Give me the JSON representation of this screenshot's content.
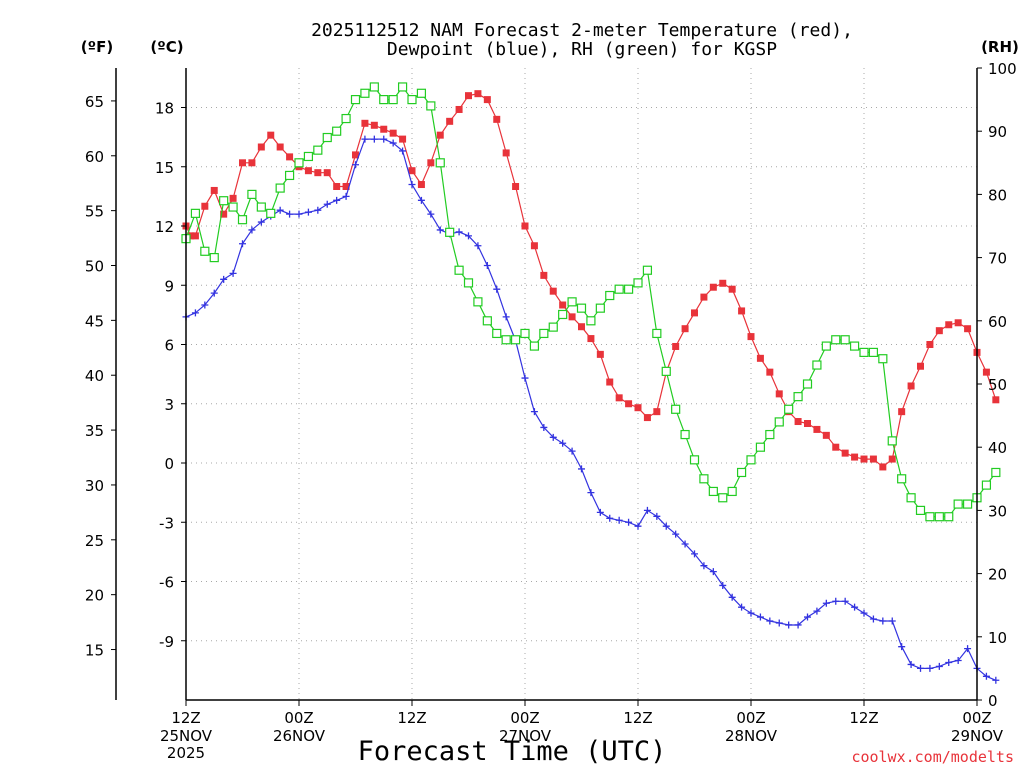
{
  "chart_data": {
    "type": "line",
    "title_line1": "2025112512 NAM Forecast 2-meter Temperature (red),",
    "title_line2": "Dewpoint (blue), RH (green) for KGSP",
    "xlabel": "Forecast Time (UTC)",
    "watermark": "coolwx.com/modelts",
    "unit_labels": {
      "fahrenheit": "(ºF)",
      "celsius": "(ºC)",
      "rh": "(RH)"
    },
    "x_range_hours": [
      0,
      84
    ],
    "x_ticks": [
      {
        "hour": 0,
        "line1": "12Z",
        "line2": "25NOV",
        "line3": "2025"
      },
      {
        "hour": 12,
        "line1": "00Z",
        "line2": "26NOV",
        "line3": ""
      },
      {
        "hour": 24,
        "line1": "12Z",
        "line2": "",
        "line3": ""
      },
      {
        "hour": 36,
        "line1": "00Z",
        "line2": "27NOV",
        "line3": ""
      },
      {
        "hour": 48,
        "line1": "12Z",
        "line2": "",
        "line3": ""
      },
      {
        "hour": 60,
        "line1": "00Z",
        "line2": "28NOV",
        "line3": ""
      },
      {
        "hour": 72,
        "line1": "12Z",
        "line2": "",
        "line3": ""
      },
      {
        "hour": 84,
        "line1": "00Z",
        "line2": "29NOV",
        "line3": ""
      }
    ],
    "celsius_axis": {
      "range": [
        -12,
        20
      ],
      "ticks": [
        "18",
        "15",
        "12",
        "9",
        "6",
        "3",
        "0",
        "-3",
        "-6",
        "-9"
      ]
    },
    "fahrenheit_axis": {
      "range": [
        10.4,
        68
      ],
      "ticks": [
        "65",
        "60",
        "55",
        "50",
        "45",
        "40",
        "35",
        "30",
        "25",
        "20",
        "15"
      ]
    },
    "rh_axis": {
      "range": [
        0,
        100
      ],
      "ticks": [
        "100",
        "90",
        "80",
        "70",
        "60",
        "50",
        "40",
        "30",
        "20",
        "10",
        "0"
      ]
    },
    "series": [
      {
        "name": "Temperature",
        "unit": "C",
        "color": "#e8333a",
        "marker": "filled-square",
        "points": [
          [
            0,
            12
          ],
          [
            0.5,
            11.5
          ],
          [
            1,
            11.5
          ],
          [
            2,
            13
          ],
          [
            3,
            13.8
          ],
          [
            4,
            12.6
          ],
          [
            5,
            13.4
          ],
          [
            6,
            15.2
          ],
          [
            7,
            15.2
          ],
          [
            8,
            16
          ],
          [
            9,
            16.6
          ],
          [
            10,
            16
          ],
          [
            11,
            15.5
          ],
          [
            12,
            15
          ],
          [
            13,
            14.8
          ],
          [
            14,
            14.7
          ],
          [
            15,
            14.7
          ],
          [
            16,
            14
          ],
          [
            17,
            14
          ],
          [
            18,
            15.6
          ],
          [
            19,
            17.2
          ],
          [
            20,
            17.1
          ],
          [
            21,
            16.9
          ],
          [
            22,
            16.7
          ],
          [
            23,
            16.4
          ],
          [
            24,
            14.8
          ],
          [
            25,
            14.1
          ],
          [
            26,
            15.2
          ],
          [
            27,
            16.6
          ],
          [
            28,
            17.3
          ],
          [
            29,
            17.9
          ],
          [
            30,
            18.6
          ],
          [
            31,
            18.7
          ],
          [
            32,
            18.4
          ],
          [
            33,
            17.4
          ],
          [
            34,
            15.7
          ],
          [
            35,
            14
          ],
          [
            36,
            12
          ],
          [
            37,
            11
          ],
          [
            38,
            9.5
          ],
          [
            39,
            8.7
          ],
          [
            40,
            8
          ],
          [
            41,
            7.4
          ],
          [
            42,
            6.9
          ],
          [
            43,
            6.3
          ],
          [
            44,
            5.5
          ],
          [
            45,
            4.1
          ],
          [
            46,
            3.3
          ],
          [
            47,
            3
          ],
          [
            48,
            2.8
          ],
          [
            49,
            2.3
          ],
          [
            50,
            2.6
          ],
          [
            51,
            4.6
          ],
          [
            52,
            5.9
          ],
          [
            53,
            6.8
          ],
          [
            54,
            7.6
          ],
          [
            55,
            8.4
          ],
          [
            56,
            8.9
          ],
          [
            57,
            9.1
          ],
          [
            58,
            8.8
          ],
          [
            59,
            7.7
          ],
          [
            60,
            6.4
          ],
          [
            61,
            5.3
          ],
          [
            62,
            4.6
          ],
          [
            63,
            3.5
          ],
          [
            64,
            2.6
          ],
          [
            65,
            2.1
          ],
          [
            66,
            2
          ],
          [
            67,
            1.7
          ],
          [
            68,
            1.4
          ],
          [
            69,
            0.8
          ],
          [
            70,
            0.5
          ],
          [
            71,
            0.3
          ],
          [
            72,
            0.2
          ],
          [
            73,
            0.2
          ],
          [
            74,
            -0.2
          ],
          [
            75,
            0.2
          ],
          [
            76,
            2.6
          ],
          [
            77,
            3.9
          ],
          [
            78,
            4.9
          ],
          [
            79,
            6
          ],
          [
            80,
            6.7
          ],
          [
            81,
            7
          ],
          [
            82,
            7.1
          ],
          [
            83,
            6.8
          ],
          [
            84,
            5.6
          ],
          [
            85,
            4.6
          ],
          [
            86,
            3.2
          ]
        ]
      },
      {
        "name": "Dewpoint",
        "unit": "C",
        "color": "#3333e0",
        "marker": "plus",
        "points": [
          [
            0,
            7.4
          ],
          [
            1,
            7.6
          ],
          [
            2,
            8
          ],
          [
            3,
            8.6
          ],
          [
            4,
            9.3
          ],
          [
            5,
            9.6
          ],
          [
            6,
            11.1
          ],
          [
            7,
            11.8
          ],
          [
            8,
            12.2
          ],
          [
            9,
            12.5
          ],
          [
            10,
            12.8
          ],
          [
            11,
            12.6
          ],
          [
            12,
            12.6
          ],
          [
            13,
            12.7
          ],
          [
            14,
            12.8
          ],
          [
            15,
            13.1
          ],
          [
            16,
            13.3
          ],
          [
            17,
            13.5
          ],
          [
            18,
            15.1
          ],
          [
            19,
            16.4
          ],
          [
            20,
            16.4
          ],
          [
            21,
            16.4
          ],
          [
            22,
            16.2
          ],
          [
            23,
            15.8
          ],
          [
            24,
            14.1
          ],
          [
            25,
            13.3
          ],
          [
            26,
            12.6
          ],
          [
            27,
            11.8
          ],
          [
            28,
            11.6
          ],
          [
            29,
            11.7
          ],
          [
            30,
            11.5
          ],
          [
            31,
            11
          ],
          [
            32,
            10
          ],
          [
            33,
            8.8
          ],
          [
            34,
            7.4
          ],
          [
            35,
            6.2
          ],
          [
            36,
            4.3
          ],
          [
            37,
            2.6
          ],
          [
            38,
            1.8
          ],
          [
            39,
            1.3
          ],
          [
            40,
            1
          ],
          [
            41,
            0.6
          ],
          [
            42,
            -0.3
          ],
          [
            43,
            -1.5
          ],
          [
            44,
            -2.5
          ],
          [
            45,
            -2.8
          ],
          [
            46,
            -2.9
          ],
          [
            47,
            -3
          ],
          [
            48,
            -3.2
          ],
          [
            49,
            -2.4
          ],
          [
            50,
            -2.7
          ],
          [
            51,
            -3.2
          ],
          [
            52,
            -3.6
          ],
          [
            53,
            -4.1
          ],
          [
            54,
            -4.6
          ],
          [
            55,
            -5.2
          ],
          [
            56,
            -5.5
          ],
          [
            57,
            -6.2
          ],
          [
            58,
            -6.8
          ],
          [
            59,
            -7.3
          ],
          [
            60,
            -7.6
          ],
          [
            61,
            -7.8
          ],
          [
            62,
            -8
          ],
          [
            63,
            -8.1
          ],
          [
            64,
            -8.2
          ],
          [
            65,
            -8.2
          ],
          [
            66,
            -7.8
          ],
          [
            67,
            -7.5
          ],
          [
            68,
            -7.1
          ],
          [
            69,
            -7
          ],
          [
            70,
            -7
          ],
          [
            71,
            -7.3
          ],
          [
            72,
            -7.6
          ],
          [
            73,
            -7.9
          ],
          [
            74,
            -8
          ],
          [
            75,
            -8
          ],
          [
            76,
            -9.3
          ],
          [
            77,
            -10.2
          ],
          [
            78,
            -10.4
          ],
          [
            79,
            -10.4
          ],
          [
            80,
            -10.3
          ],
          [
            81,
            -10.1
          ],
          [
            82,
            -10
          ],
          [
            83,
            -9.4
          ],
          [
            84,
            -10.4
          ],
          [
            85,
            -10.8
          ],
          [
            86,
            -11
          ]
        ]
      },
      {
        "name": "RH",
        "unit": "%",
        "color": "#22cc22",
        "marker": "open-square",
        "points": [
          [
            0,
            73
          ],
          [
            1,
            77
          ],
          [
            2,
            71
          ],
          [
            3,
            70
          ],
          [
            4,
            79
          ],
          [
            5,
            78
          ],
          [
            6,
            76
          ],
          [
            7,
            80
          ],
          [
            8,
            78
          ],
          [
            9,
            77
          ],
          [
            10,
            81
          ],
          [
            11,
            83
          ],
          [
            12,
            85
          ],
          [
            13,
            86
          ],
          [
            14,
            87
          ],
          [
            15,
            89
          ],
          [
            16,
            90
          ],
          [
            17,
            92
          ],
          [
            18,
            95
          ],
          [
            19,
            96
          ],
          [
            20,
            97
          ],
          [
            21,
            95
          ],
          [
            22,
            95
          ],
          [
            23,
            97
          ],
          [
            24,
            95
          ],
          [
            25,
            96
          ],
          [
            26,
            94
          ],
          [
            27,
            85
          ],
          [
            28,
            74
          ],
          [
            29,
            68
          ],
          [
            30,
            66
          ],
          [
            31,
            63
          ],
          [
            32,
            60
          ],
          [
            33,
            58
          ],
          [
            34,
            57
          ],
          [
            35,
            57
          ],
          [
            36,
            58
          ],
          [
            37,
            56
          ],
          [
            38,
            58
          ],
          [
            39,
            59
          ],
          [
            40,
            61
          ],
          [
            41,
            63
          ],
          [
            42,
            62
          ],
          [
            43,
            60
          ],
          [
            44,
            62
          ],
          [
            45,
            64
          ],
          [
            46,
            65
          ],
          [
            47,
            65
          ],
          [
            48,
            66
          ],
          [
            49,
            68
          ],
          [
            50,
            58
          ],
          [
            51,
            52
          ],
          [
            52,
            46
          ],
          [
            53,
            42
          ],
          [
            54,
            38
          ],
          [
            55,
            35
          ],
          [
            56,
            33
          ],
          [
            57,
            32
          ],
          [
            58,
            33
          ],
          [
            59,
            36
          ],
          [
            60,
            38
          ],
          [
            61,
            40
          ],
          [
            62,
            42
          ],
          [
            63,
            44
          ],
          [
            64,
            46
          ],
          [
            65,
            48
          ],
          [
            66,
            50
          ],
          [
            67,
            53
          ],
          [
            68,
            56
          ],
          [
            69,
            57
          ],
          [
            70,
            57
          ],
          [
            71,
            56
          ],
          [
            72,
            55
          ],
          [
            73,
            55
          ],
          [
            74,
            54
          ],
          [
            75,
            41
          ],
          [
            76,
            35
          ],
          [
            77,
            32
          ],
          [
            78,
            30
          ],
          [
            79,
            29
          ],
          [
            80,
            29
          ],
          [
            81,
            29
          ],
          [
            82,
            31
          ],
          [
            83,
            31
          ],
          [
            84,
            32
          ],
          [
            85,
            34
          ],
          [
            86,
            36
          ]
        ]
      }
    ]
  }
}
